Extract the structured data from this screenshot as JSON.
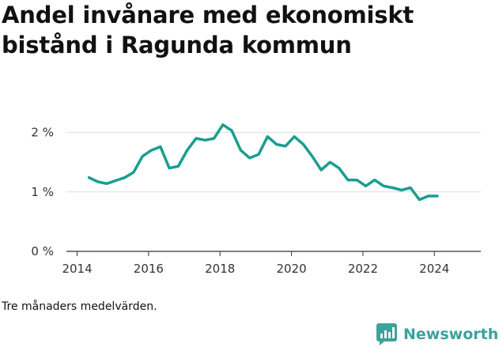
{
  "title": "Andel invånare med ekonomiskt bistånd i Ragunda kommun",
  "caption": "Tre månaders medelvärden.",
  "brand": {
    "name": "Newsworthy",
    "color": "#3aa39a"
  },
  "colors": {
    "line": "#1a9e8f",
    "grid": "#dddddd",
    "axis": "#333333"
  },
  "chart_data": {
    "type": "line",
    "title": "Andel invånare med ekonomiskt bistånd i Ragunda kommun",
    "xlabel": "",
    "ylabel": "",
    "xlim": [
      2013.7,
      2025.3
    ],
    "ylim": [
      0,
      2.3
    ],
    "x_ticks": [
      {
        "value": 2014,
        "label": "2014"
      },
      {
        "value": 2016,
        "label": "2016"
      },
      {
        "value": 2018,
        "label": "2018"
      },
      {
        "value": 2020,
        "label": "2020"
      },
      {
        "value": 2022,
        "label": "2022"
      },
      {
        "value": 2024,
        "label": "2024"
      }
    ],
    "y_ticks": [
      {
        "value": 0,
        "label": "0 %"
      },
      {
        "value": 1,
        "label": "1 %"
      },
      {
        "value": 2,
        "label": "2 %"
      }
    ],
    "grid": true,
    "series": [
      {
        "x": [
          2014.33,
          2014.58,
          2014.83,
          2015.08,
          2015.33,
          2015.58,
          2015.83,
          2016.08,
          2016.33,
          2016.58,
          2016.83,
          2017.08,
          2017.33,
          2017.58,
          2017.83,
          2018.08,
          2018.33,
          2018.58,
          2018.83,
          2019.08,
          2019.33,
          2019.58,
          2019.83,
          2020.08,
          2020.33,
          2020.58,
          2020.83,
          2021.08,
          2021.33,
          2021.58,
          2021.83,
          2022.08,
          2022.33,
          2022.58,
          2022.83,
          2023.08,
          2023.33,
          2023.58,
          2023.83,
          2024.08
        ],
        "y": [
          1.24,
          1.17,
          1.14,
          1.19,
          1.24,
          1.33,
          1.6,
          1.7,
          1.76,
          1.4,
          1.43,
          1.7,
          1.9,
          1.87,
          1.9,
          2.13,
          2.03,
          1.7,
          1.57,
          1.63,
          1.93,
          1.8,
          1.77,
          1.93,
          1.8,
          1.6,
          1.37,
          1.5,
          1.4,
          1.2,
          1.2,
          1.1,
          1.2,
          1.1,
          1.07,
          1.03,
          1.07,
          0.87,
          0.93,
          0.93
        ]
      }
    ]
  }
}
